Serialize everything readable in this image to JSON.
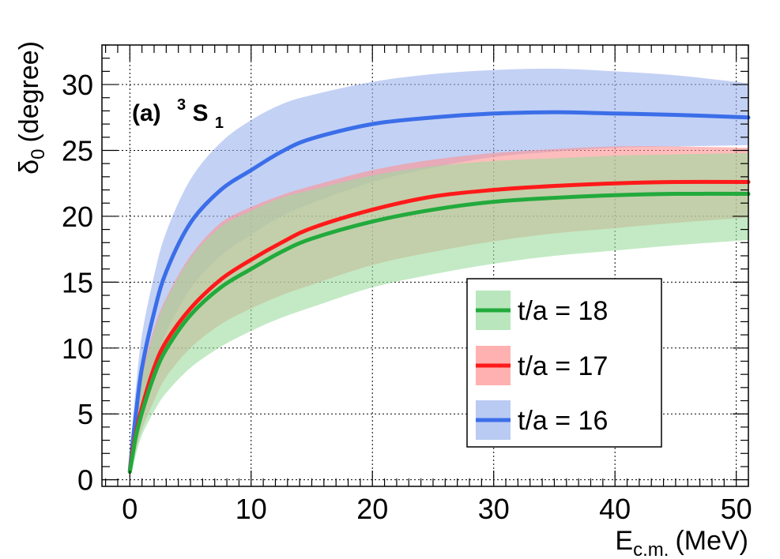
{
  "chart_data": {
    "type": "line",
    "panel_label": {
      "prefix": "(a)",
      "superscript": "3",
      "letter": "S",
      "subscript": "1"
    },
    "xlabel": {
      "main": "E",
      "sub": "c.m.",
      "unit": "(MeV)"
    },
    "ylabel": {
      "main": "δ",
      "sub": "0",
      "unit": "(degree)"
    },
    "xlim": [
      -2.3,
      51
    ],
    "ylim": [
      -0.5,
      33
    ],
    "x_ticks": [
      0,
      10,
      20,
      30,
      40,
      50
    ],
    "y_ticks": [
      0,
      5,
      10,
      15,
      20,
      25,
      30
    ],
    "grid": true,
    "x": [
      0,
      0.25,
      0.5,
      1,
      2,
      3,
      5,
      7.5,
      10,
      12.5,
      15,
      20,
      25,
      30,
      35,
      40,
      45,
      51
    ],
    "series": [
      {
        "name": "t/a = 16",
        "color": "#3b6ee8",
        "band_color": "#9bb3ee",
        "values": [
          0.7,
          3.0,
          5.0,
          8.5,
          12.7,
          15.8,
          19.5,
          22.0,
          23.5,
          24.9,
          25.9,
          27.0,
          27.5,
          27.8,
          27.9,
          27.8,
          27.7,
          27.5
        ],
        "upper": [
          0.9,
          4.5,
          7.0,
          11.0,
          15.5,
          18.8,
          22.8,
          25.6,
          27.3,
          28.5,
          29.2,
          30.2,
          30.8,
          31.1,
          31.2,
          31.0,
          30.7,
          30.1
        ],
        "lower": [
          0.5,
          1.5,
          2.7,
          5.1,
          8.6,
          11.2,
          14.5,
          17.0,
          18.6,
          20.0,
          21.0,
          22.6,
          23.7,
          24.5,
          24.9,
          25.2,
          25.3,
          25.4
        ]
      },
      {
        "name": "t/a = 17",
        "color": "#ff1a1a",
        "band_color": "#ff8f8f",
        "values": [
          0.6,
          2.3,
          3.5,
          5.5,
          8.5,
          10.5,
          13.0,
          15.2,
          16.7,
          18.0,
          19.1,
          20.5,
          21.5,
          22.0,
          22.3,
          22.5,
          22.6,
          22.6
        ],
        "upper": [
          0.8,
          3.6,
          5.3,
          8.0,
          11.5,
          13.8,
          17.0,
          19.5,
          20.7,
          21.6,
          22.3,
          23.5,
          24.3,
          24.8,
          25.1,
          25.3,
          25.3,
          25.2
        ],
        "lower": [
          0.5,
          1.4,
          2.2,
          3.8,
          6.0,
          7.8,
          10.0,
          11.8,
          13.0,
          14.0,
          14.8,
          16.3,
          17.3,
          18.1,
          18.7,
          19.1,
          19.5,
          19.9
        ]
      },
      {
        "name": "t/a = 18",
        "color": "#22aa3c",
        "band_color": "#9bdc9f",
        "values": [
          0.6,
          2.0,
          3.3,
          5.1,
          7.9,
          9.9,
          12.5,
          14.6,
          16.0,
          17.3,
          18.3,
          19.6,
          20.5,
          21.1,
          21.4,
          21.6,
          21.7,
          21.7
        ],
        "upper": [
          0.8,
          3.4,
          5.1,
          7.7,
          11.2,
          13.6,
          16.8,
          19.2,
          20.4,
          21.4,
          22.0,
          23.1,
          23.8,
          24.2,
          24.4,
          24.6,
          24.7,
          24.8
        ],
        "lower": [
          0.5,
          1.0,
          1.9,
          3.4,
          5.2,
          6.6,
          8.5,
          10.1,
          11.3,
          12.3,
          13.1,
          14.6,
          15.6,
          16.4,
          17.0,
          17.4,
          17.8,
          18.2
        ]
      }
    ],
    "legend": {
      "placement": "lower-right",
      "entries": [
        "t/a = 18",
        "t/a = 17",
        "t/a = 16"
      ]
    }
  }
}
